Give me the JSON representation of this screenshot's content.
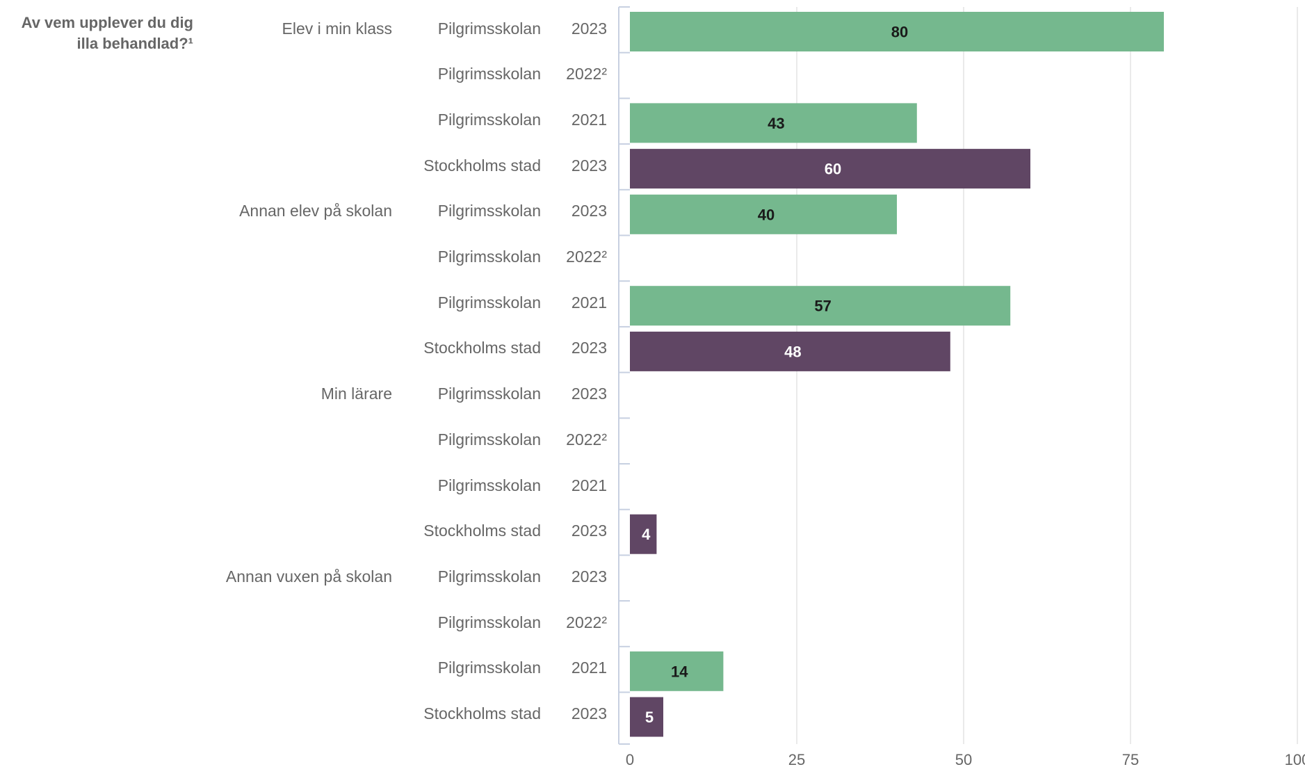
{
  "chart_data": {
    "type": "bar",
    "orientation": "horizontal",
    "title": "Av vem upplever du dig\nilla behandlad?¹",
    "xlim": [
      0,
      100
    ],
    "xticks": [
      "0",
      "25",
      "50",
      "75",
      "100"
    ],
    "grid": true,
    "colors": {
      "Pilgrimsskolan": "#75b88e",
      "Stockholms stad": "#604664"
    },
    "categories": [
      "Elev i min klass",
      "Annan elev på skolan",
      "Min lärare",
      "Annan vuxen på skolan"
    ],
    "rows": [
      {
        "category": "Elev i min klass",
        "unit": "Pilgrimsskolan",
        "year": "2023",
        "value": 80
      },
      {
        "category": "",
        "unit": "Pilgrimsskolan",
        "year": "2022²",
        "value": null
      },
      {
        "category": "",
        "unit": "Pilgrimsskolan",
        "year": "2021",
        "value": 43
      },
      {
        "category": "",
        "unit": "Stockholms stad",
        "year": "2023",
        "value": 60
      },
      {
        "category": "Annan elev på skolan",
        "unit": "Pilgrimsskolan",
        "year": "2023",
        "value": 40
      },
      {
        "category": "",
        "unit": "Pilgrimsskolan",
        "year": "2022²",
        "value": null
      },
      {
        "category": "",
        "unit": "Pilgrimsskolan",
        "year": "2021",
        "value": 57
      },
      {
        "category": "",
        "unit": "Stockholms stad",
        "year": "2023",
        "value": 48
      },
      {
        "category": "Min lärare",
        "unit": "Pilgrimsskolan",
        "year": "2023",
        "value": null
      },
      {
        "category": "",
        "unit": "Pilgrimsskolan",
        "year": "2022²",
        "value": null
      },
      {
        "category": "",
        "unit": "Pilgrimsskolan",
        "year": "2021",
        "value": null
      },
      {
        "category": "",
        "unit": "Stockholms stad",
        "year": "2023",
        "value": 4
      },
      {
        "category": "Annan vuxen på skolan",
        "unit": "Pilgrimsskolan",
        "year": "2023",
        "value": null
      },
      {
        "category": "",
        "unit": "Pilgrimsskolan",
        "year": "2022²",
        "value": null
      },
      {
        "category": "",
        "unit": "Pilgrimsskolan",
        "year": "2021",
        "value": 14
      },
      {
        "category": "",
        "unit": "Stockholms stad",
        "year": "2023",
        "value": 5
      }
    ]
  }
}
